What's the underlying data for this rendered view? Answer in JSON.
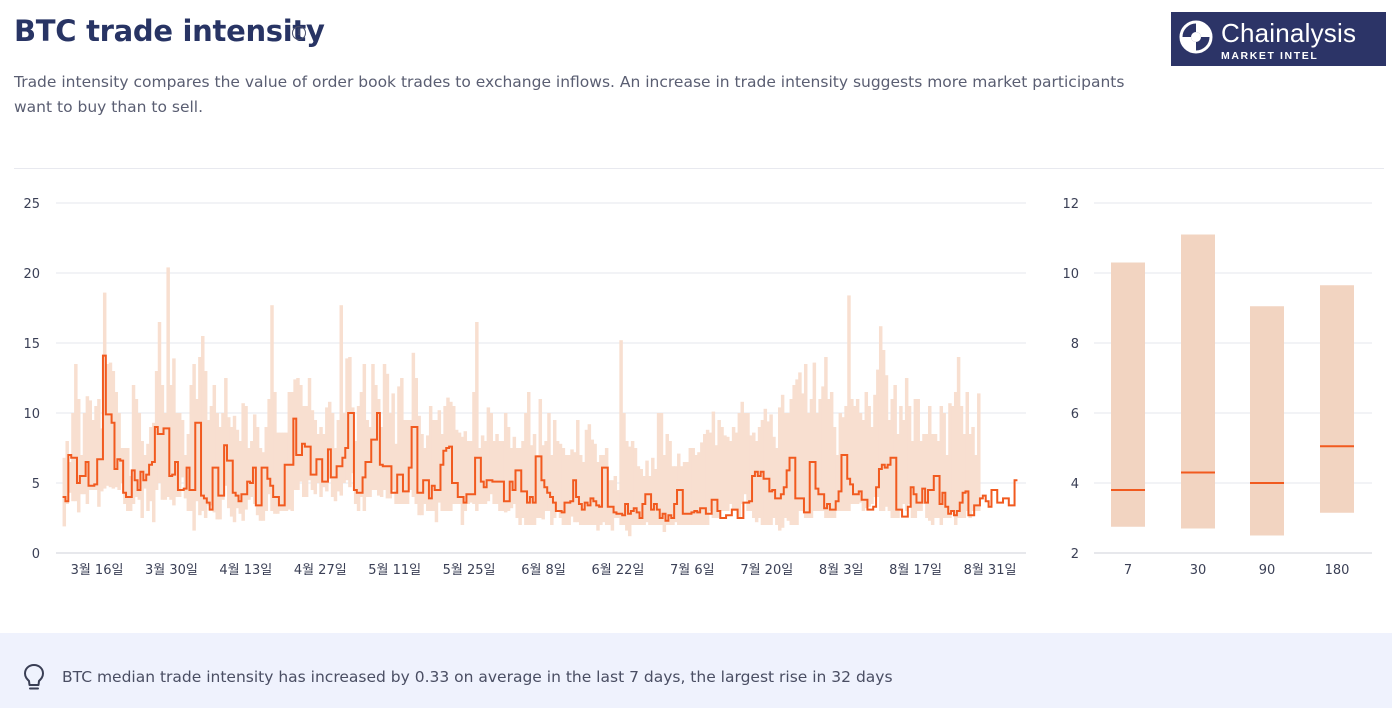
{
  "header": {
    "title": "BTC trade intensity",
    "info_icon": "info-icon",
    "subtitle": "Trade intensity compares the value of order book trades to exchange inflows. An increase in trade intensity suggests more market participants want to buy than to sell."
  },
  "logo": {
    "brand": "Chainalysis",
    "sub": "MARKET INTEL"
  },
  "insight": {
    "icon": "lightbulb-icon",
    "text": "BTC median trade intensity has increased by 0.33 on average in the last 7 days, the largest rise in 32 days"
  },
  "colors": {
    "median": "#f15a1f",
    "band": "#f8dfd0",
    "band_summary": "#f2d4c1",
    "navy": "#2c3467"
  },
  "chart_data": [
    {
      "type": "line",
      "title": "",
      "xlabel": "",
      "ylabel": "",
      "ylim": [
        0,
        25
      ],
      "yticks": [
        0,
        5,
        10,
        15,
        20,
        25
      ],
      "x_tick_labels": [
        "3월 16일",
        "3월 30일",
        "4월 13일",
        "4월 27일",
        "5월 11일",
        "5월 25일",
        "6월 8일",
        "6월 22일",
        "7월 6일",
        "7월 20일",
        "8월 3일",
        "8월 17일",
        "8월 31일"
      ],
      "grid": true,
      "series": [
        {
          "role": "median (step line)",
          "values": [
            4.0,
            3.7,
            7.0,
            6.8,
            6.8,
            5.0,
            5.5,
            5.5,
            6.5,
            4.8,
            4.8,
            4.9,
            6.7,
            6.7,
            14.1,
            9.9,
            9.9,
            9.3,
            6.0,
            6.7,
            6.6,
            4.3,
            4.0,
            4.0,
            5.9,
            5.2,
            4.5,
            5.8,
            5.2,
            5.6,
            6.3,
            6.5,
            9.0,
            8.5,
            8.5,
            8.9,
            8.9,
            5.5,
            5.6,
            6.5,
            4.5,
            4.5,
            4.6,
            6.1,
            4.5,
            4.5,
            9.3,
            9.3,
            4.1,
            3.9,
            3.6,
            3.1,
            6.1,
            6.1,
            4.1,
            4.1,
            7.7,
            6.6,
            6.6,
            4.3,
            4.1,
            3.7,
            4.2,
            4.2,
            5.1,
            5.0,
            6.1,
            3.4,
            3.4,
            6.1,
            6.1,
            5.3,
            4.8,
            4.0,
            4.0,
            3.4,
            3.4,
            6.3,
            6.3,
            6.3,
            9.6,
            7.0,
            7.0,
            7.8,
            7.6,
            7.6,
            5.6,
            5.6,
            6.7,
            6.7,
            5.1,
            5.1,
            7.4,
            5.4,
            5.4,
            6.2,
            6.2,
            6.8,
            7.5,
            10.0,
            10.0,
            4.5,
            4.3,
            4.3,
            5.4,
            6.5,
            6.5,
            8.1,
            8.1,
            10.0,
            6.3,
            6.2,
            6.2,
            6.2,
            4.3,
            4.3,
            5.6,
            5.6,
            4.4,
            4.4,
            6.1,
            9.0,
            9.0,
            4.3,
            4.3,
            5.2,
            5.2,
            3.9,
            4.8,
            4.5,
            4.5,
            6.3,
            7.3,
            7.5,
            7.6,
            5.0,
            5.0,
            4.0,
            4.0,
            3.6,
            4.2,
            4.2,
            4.2,
            6.8,
            6.8,
            5.1,
            4.7,
            5.2,
            5.2,
            5.1,
            5.1,
            5.1,
            5.1,
            3.7,
            3.7,
            5.1,
            4.5,
            5.9,
            5.9,
            4.4,
            4.4,
            3.6,
            4.0,
            3.6,
            6.9,
            6.9,
            5.2,
            4.7,
            4.3,
            4.0,
            3.6,
            3.0,
            3.0,
            2.9,
            3.6,
            3.6,
            3.7,
            5.2,
            4.0,
            3.5,
            3.1,
            3.6,
            3.4,
            3.9,
            3.7,
            3.4,
            3.3,
            6.1,
            6.1,
            3.3,
            3.3,
            2.9,
            2.8,
            2.8,
            2.7,
            3.5,
            2.8,
            3.0,
            3.2,
            2.9,
            2.5,
            3.5,
            4.2,
            4.2,
            3.1,
            3.5,
            3.1,
            2.5,
            2.8,
            2.3,
            2.7,
            2.5,
            3.5,
            4.5,
            4.5,
            2.8,
            2.8,
            2.8,
            2.9,
            3.0,
            2.9,
            3.2,
            3.2,
            2.8,
            2.8,
            3.8,
            3.8,
            3.0,
            2.5,
            2.5,
            2.7,
            2.7,
            3.1,
            3.1,
            2.5,
            2.5,
            3.6,
            3.6,
            3.7,
            5.5,
            5.8,
            5.5,
            5.8,
            5.3,
            5.3,
            4.4,
            4.5,
            3.9,
            3.9,
            4.2,
            4.7,
            5.9,
            6.8,
            6.8,
            3.9,
            3.9,
            3.9,
            2.9,
            2.9,
            6.5,
            6.5,
            4.6,
            4.2,
            4.2,
            3.2,
            3.5,
            3.1,
            3.1,
            3.7,
            4.4,
            7.0,
            7.0,
            5.3,
            4.9,
            4.2,
            4.2,
            4.4,
            3.8,
            3.8,
            3.1,
            3.1,
            3.3,
            4.7,
            6.0,
            6.3,
            6.1,
            6.3,
            6.8,
            6.8,
            3.1,
            3.1,
            2.6,
            2.6,
            3.3,
            4.7,
            4.2,
            3.6,
            3.6,
            4.6,
            3.6,
            4.5,
            4.5,
            5.5,
            5.5,
            3.5,
            4.3,
            3.3,
            2.8,
            3.0,
            2.7,
            3.0,
            3.6,
            4.3,
            4.4,
            2.7,
            2.7,
            3.4,
            3.4,
            3.9,
            4.1,
            3.7,
            3.3,
            4.5,
            4.5,
            3.6,
            3.6,
            3.9,
            3.9,
            3.4,
            3.4,
            5.2
          ]
        },
        {
          "role": "high (band top)",
          "values": [
            6.8,
            8.0,
            6.5,
            10.0,
            13.5,
            11.0,
            7.0,
            10.0,
            11.2,
            10.9,
            9.5,
            10.5,
            11.0,
            8.9,
            18.6,
            13.5,
            13.6,
            13.0,
            11.5,
            10.0,
            7.5,
            7.5,
            7.5,
            5.5,
            12.0,
            11.0,
            10.0,
            8.0,
            7.0,
            7.8,
            9.0,
            9.3,
            13.0,
            16.5,
            12.0,
            10.0,
            20.4,
            12.0,
            13.9,
            10.0,
            10.0,
            9.5,
            7.0,
            8.5,
            12.0,
            13.5,
            11.0,
            14.0,
            15.5,
            13.0,
            9.5,
            10.5,
            12.0,
            10.0,
            9.0,
            10.0,
            12.5,
            9.7,
            9.0,
            9.8,
            8.8,
            8.0,
            10.7,
            10.5,
            7.5,
            8.0,
            9.9,
            9.0,
            7.5,
            7.2,
            9.0,
            11.0,
            17.7,
            11.5,
            8.6,
            8.6,
            8.6,
            8.6,
            11.5,
            11.5,
            12.4,
            12.5,
            12.0,
            10.5,
            10.5,
            12.5,
            10.2,
            9.5,
            8.5,
            9.0,
            8.5,
            10.4,
            10.8,
            10.0,
            7.5,
            9.5,
            17.7,
            10.0,
            13.9,
            14.0,
            10.4,
            8.0,
            10.5,
            11.5,
            13.5,
            9.5,
            9.0,
            13.5,
            12.0,
            11.0,
            9.0,
            13.5,
            12.8,
            10.0,
            11.4,
            7.8,
            11.9,
            12.5,
            9.5,
            9.5,
            9.5,
            14.3,
            12.5,
            9.8,
            8.5,
            7.5,
            8.4,
            10.5,
            9.5,
            9.5,
            10.2,
            8.5,
            10.5,
            11.1,
            10.8,
            10.5,
            8.8,
            8.6,
            8.3,
            8.7,
            8.0,
            8.0,
            11.5,
            16.5,
            7.5,
            8.4,
            8.0,
            10.4,
            10.0,
            8.0,
            8.5,
            8.0,
            8.0,
            10.0,
            9.0,
            7.5,
            8.3,
            7.5,
            7.5,
            8.0,
            10.0,
            11.5,
            7.7,
            8.5,
            7.0,
            11.0,
            7.7,
            8.0,
            10.0,
            7.0,
            9.5,
            8.0,
            7.8,
            7.5,
            7.0,
            7.0,
            7.4,
            7.2,
            9.5,
            7.0,
            6.5,
            8.8,
            9.2,
            8.1,
            7.8,
            6.5,
            7.0,
            7.0,
            7.5,
            5.2,
            5.2,
            5.5,
            4.5,
            15.2,
            10.0,
            8.0,
            7.6,
            8.0,
            7.5,
            6.2,
            6.0,
            5.5,
            6.6,
            5.5,
            6.8,
            6.0,
            10.0,
            10.0,
            7.0,
            8.5,
            8.0,
            6.2,
            6.2,
            7.1,
            6.2,
            6.5,
            6.5,
            7.5,
            7.5,
            7.0,
            7.2,
            7.9,
            8.5,
            8.8,
            8.6,
            10.1,
            7.7,
            9.5,
            9.0,
            8.4,
            8.3,
            8.0,
            9.0,
            8.6,
            10.0,
            10.8,
            10.0,
            10.0,
            8.4,
            8.6,
            8.0,
            9.0,
            9.5,
            10.3,
            9.4,
            9.9,
            8.3,
            7.5,
            10.4,
            11.3,
            10.0,
            10.0,
            11.0,
            12.0,
            12.4,
            12.9,
            11.4,
            13.5,
            10.0,
            11.0,
            13.6,
            10.0,
            11.0,
            11.9,
            14.0,
            11.0,
            11.5,
            9.0,
            7.0,
            10.0,
            9.7,
            10.5,
            18.4,
            11.0,
            10.5,
            11.0,
            10.0,
            9.5,
            11.5,
            10.5,
            9.0,
            11.3,
            13.1,
            16.2,
            14.5,
            12.7,
            9.5,
            11.0,
            12.0,
            8.5,
            10.5,
            9.5,
            12.5,
            10.5,
            8.0,
            11.0,
            11.0,
            8.0,
            8.5,
            8.5,
            10.5,
            8.5,
            8.5,
            8.0,
            10.5,
            10.0,
            7.0,
            10.7,
            10.5,
            11.5,
            14.0,
            10.5,
            8.5,
            11.5,
            8.5,
            9.0,
            7.0,
            11.4
          ]
        },
        {
          "role": "low (band bottom)",
          "values": [
            1.9,
            3.5,
            4.3,
            3.7,
            3.7,
            2.9,
            4.2,
            4.2,
            3.5,
            4.5,
            4.5,
            4.5,
            3.3,
            4.4,
            4.6,
            4.8,
            4.7,
            4.6,
            4.7,
            4.5,
            5.0,
            3.5,
            3.0,
            3.0,
            3.5,
            4.0,
            3.8,
            2.5,
            4.6,
            3.0,
            3.7,
            2.2,
            4.5,
            5.0,
            3.8,
            3.8,
            4.0,
            3.8,
            3.4,
            4.0,
            4.0,
            5.4,
            3.9,
            3.0,
            3.0,
            1.6,
            3.7,
            2.7,
            3.0,
            2.5,
            3.4,
            3.4,
            2.9,
            2.4,
            2.4,
            3.8,
            4.8,
            3.2,
            2.6,
            2.2,
            3.2,
            2.8,
            2.3,
            3.1,
            3.8,
            4.0,
            3.5,
            2.7,
            2.3,
            2.3,
            3.0,
            4.2,
            3.0,
            2.8,
            2.8,
            3.0,
            3.0,
            3.0,
            3.1,
            3.0,
            4.5,
            4.5,
            5.1,
            4.0,
            4.0,
            5.2,
            4.5,
            4.2,
            5.0,
            4.0,
            4.7,
            4.4,
            5.3,
            4.0,
            3.7,
            4.4,
            4.1,
            5.0,
            5.2,
            4.7,
            5.7,
            3.5,
            3.0,
            4.0,
            3.0,
            4.0,
            4.0,
            4.5,
            4.5,
            4.1,
            4.0,
            4.5,
            3.9,
            3.9,
            4.5,
            3.5,
            3.5,
            3.5,
            3.5,
            3.5,
            4.5,
            4.0,
            3.5,
            2.7,
            2.7,
            3.5,
            3.0,
            3.0,
            3.0,
            2.2,
            3.6,
            3.0,
            3.0,
            3.0,
            3.0,
            3.5,
            3.5,
            3.5,
            2.0,
            3.0,
            3.5,
            3.6,
            3.5,
            3.0,
            3.5,
            3.5,
            3.5,
            3.7,
            4.2,
            3.5,
            3.5,
            3.0,
            3.0,
            2.9,
            3.0,
            3.2,
            3.5,
            2.5,
            2.0,
            2.5,
            2.0,
            2.0,
            2.0,
            2.0,
            2.5,
            2.5,
            2.4,
            3.0,
            3.0,
            2.0,
            2.5,
            3.0,
            2.5,
            2.0,
            2.0,
            2.0,
            2.6,
            2.2,
            2.2,
            2.0,
            2.0,
            2.0,
            2.0,
            2.0,
            2.0,
            1.6,
            2.0,
            2.2,
            2.0,
            2.0,
            1.6,
            2.5,
            2.5,
            2.0,
            2.0,
            1.6,
            1.2,
            2.0,
            2.0,
            2.0,
            2.0,
            2.0,
            2.2,
            2.0,
            2.0,
            2.0,
            2.0,
            2.0,
            1.5,
            2.0,
            2.0,
            2.0,
            2.2,
            2.0,
            2.0,
            2.0,
            2.0,
            2.0,
            2.0,
            2.0,
            2.0,
            2.0,
            2.0,
            2.0,
            3.0,
            2.5,
            2.5,
            2.5,
            3.0,
            3.0,
            3.0,
            3.5,
            3.0,
            3.0,
            2.5,
            3.5,
            4.2,
            3.0,
            3.0,
            2.5,
            2.2,
            2.5,
            2.0,
            2.0,
            2.0,
            2.0,
            2.5,
            2.0,
            1.6,
            1.8,
            2.5,
            2.3,
            2.0,
            2.0,
            2.0,
            3.0,
            3.0,
            2.5,
            2.5,
            2.5,
            3.0,
            3.0,
            3.0,
            3.0,
            2.5,
            2.5,
            2.5,
            2.5,
            3.0,
            3.0,
            3.0,
            3.0,
            3.0,
            3.5,
            3.5,
            3.5,
            3.6,
            3.0,
            3.2,
            3.3,
            3.5,
            4.0,
            4.0,
            3.0,
            3.0,
            3.3,
            3.0,
            2.5,
            2.5,
            2.5,
            3.0,
            3.5,
            3.0,
            3.5,
            2.5,
            2.5,
            3.0,
            3.0,
            3.5,
            2.5,
            2.3,
            2.0,
            2.5,
            2.5,
            2.0,
            2.5,
            2.5,
            2.5,
            3.0,
            2.0,
            2.5,
            2.5,
            2.5,
            3.0,
            2.5,
            3.0,
            3.0,
            3.0,
            3.0,
            3.0,
            2.5,
            3.5,
            3.0,
            3.0,
            3.5,
            3.5
          ]
        }
      ]
    },
    {
      "type": "bar",
      "title": "",
      "xlabel": "",
      "ylabel": "",
      "ylim": [
        2,
        12
      ],
      "yticks": [
        2,
        4,
        6,
        8,
        10,
        12
      ],
      "categories": [
        "7",
        "30",
        "90",
        "180"
      ],
      "grid": true,
      "series": [
        {
          "role": "band top",
          "values": [
            10.3,
            11.1,
            9.05,
            9.65
          ]
        },
        {
          "role": "band bottom",
          "values": [
            2.75,
            2.7,
            2.5,
            3.15
          ]
        },
        {
          "role": "median",
          "values": [
            3.8,
            4.3,
            4.0,
            5.05
          ]
        }
      ]
    }
  ]
}
